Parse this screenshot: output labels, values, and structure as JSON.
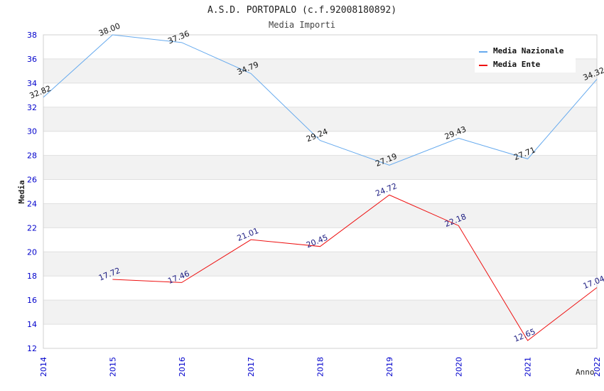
{
  "chart_data": {
    "type": "line",
    "title": "A.S.D. PORTOPALO (c.f.92008180892)",
    "subtitle": "Media Importi",
    "xlabel": "Anno",
    "ylabel": "Media",
    "x": [
      "2014",
      "2015",
      "2016",
      "2017",
      "2018",
      "2019",
      "2020",
      "2021",
      "2022"
    ],
    "ylim": [
      12,
      38
    ],
    "yticks": [
      "12",
      "14",
      "16",
      "18",
      "20",
      "22",
      "24",
      "26",
      "28",
      "30",
      "32",
      "34",
      "36",
      "38"
    ],
    "grid": true,
    "legend_position": "top-right",
    "series": [
      {
        "name": "Media Nazionale",
        "color": "#66aaee",
        "label_color": "#111111",
        "values": [
          32.82,
          38.0,
          37.36,
          34.79,
          29.24,
          27.19,
          29.43,
          27.71,
          34.32
        ],
        "labels": [
          "32.82",
          "38.00",
          "37.36",
          "34.79",
          "29.24",
          "27.19",
          "29.43",
          "27.71",
          "34.32"
        ]
      },
      {
        "name": "Media Ente",
        "color": "#ee1111",
        "label_color": "#1a1a80",
        "values": [
          null,
          17.72,
          17.46,
          21.01,
          20.45,
          24.72,
          22.18,
          12.65,
          17.04
        ],
        "labels": [
          null,
          "17.72",
          "17.46",
          "21.01",
          "20.45",
          "24.72",
          "22.18",
          "12.65",
          "17.04"
        ]
      }
    ]
  }
}
